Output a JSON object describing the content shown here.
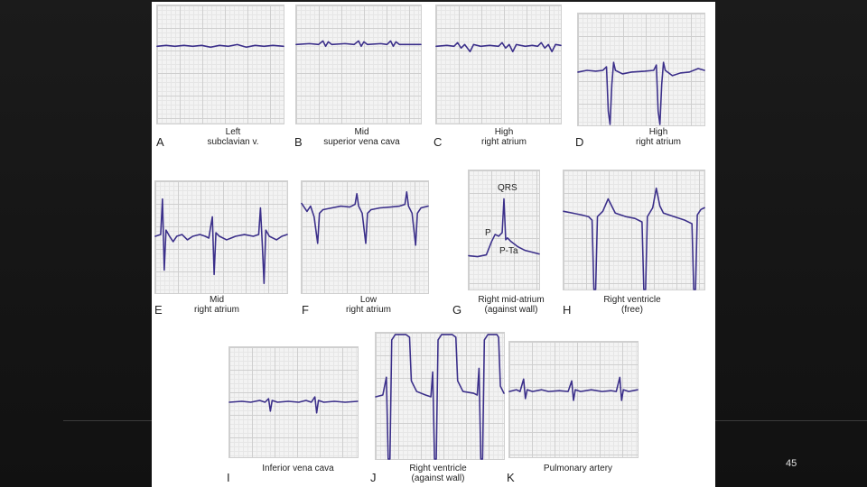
{
  "figure": {
    "panels": [
      {
        "letter": "A",
        "caption_lines": [
          "Left",
          "subclavian v."
        ]
      },
      {
        "letter": "B",
        "caption_lines": [
          "Mid",
          "superior vena cava"
        ]
      },
      {
        "letter": "C",
        "caption_lines": [
          "High",
          "right atrium"
        ]
      },
      {
        "letter": "D",
        "caption_lines": [
          "High",
          "right atrium"
        ]
      },
      {
        "letter": "E",
        "caption_lines": [
          "Mid",
          "right atrium"
        ]
      },
      {
        "letter": "F",
        "caption_lines": [
          "Low",
          "right atrium"
        ]
      },
      {
        "letter": "G",
        "caption_lines": [
          "Right mid-atrium",
          "(against wall)"
        ],
        "annotations": [
          "QRS",
          "P",
          "P-Ta"
        ]
      },
      {
        "letter": "H",
        "caption_lines": [
          "Right ventricle",
          "(free)"
        ]
      },
      {
        "letter": "I",
        "caption_lines": [
          "Inferior vena cava"
        ]
      },
      {
        "letter": "J",
        "caption_lines": [
          "Right ventricle",
          "(against wall)"
        ]
      },
      {
        "letter": "K",
        "caption_lines": [
          "Pulmonary artery"
        ]
      }
    ]
  },
  "slide": {
    "page_number": "45"
  },
  "colors": {
    "trace": "#3b2f8a",
    "background": "#141414"
  }
}
